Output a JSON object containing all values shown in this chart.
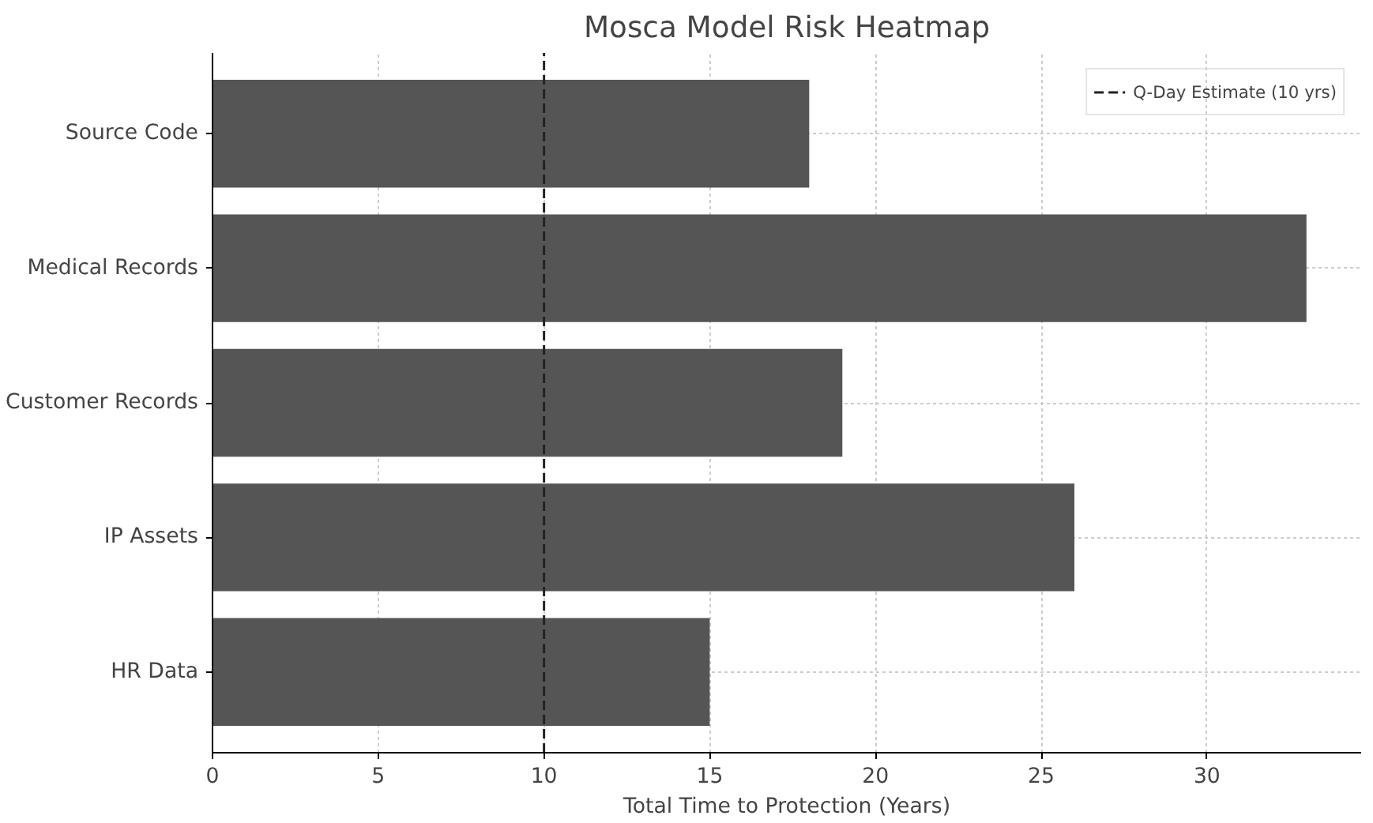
{
  "chart_data": {
    "type": "bar",
    "orientation": "horizontal",
    "title": "Mosca Model Risk Heatmap",
    "xlabel": "Total Time to Protection (Years)",
    "categories": [
      "Source Code",
      "Medical Records",
      "Customer Records",
      "IP Assets",
      "HR Data"
    ],
    "values": [
      18,
      33,
      19,
      26,
      15
    ],
    "color": "#555555",
    "xlim": [
      0,
      34.65
    ],
    "xticks": [
      0,
      5,
      10,
      15,
      20,
      25,
      30
    ],
    "grid": true,
    "legend": "top right",
    "ref_lines": [
      {
        "axis": "x",
        "value": 10,
        "label": "Q-Day Estimate (10 yrs)",
        "color": "#222222",
        "line_style": "dashed"
      }
    ]
  }
}
